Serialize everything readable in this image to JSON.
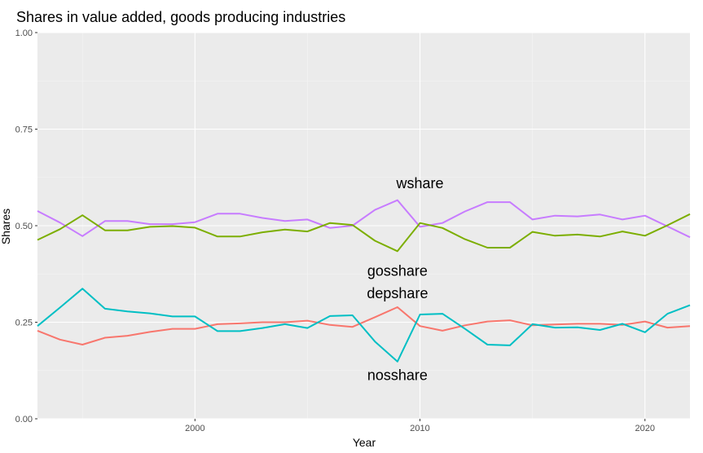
{
  "chart_data": {
    "type": "line",
    "title": "Shares in value added, goods producing industries",
    "xlabel": "Year",
    "ylabel": "Shares",
    "xlim": [
      1993,
      2022
    ],
    "ylim": [
      0,
      1
    ],
    "x_ticks": [
      2000,
      2010,
      2020
    ],
    "y_ticks": [
      "0.00",
      "0.25",
      "0.50",
      "0.75",
      "1.00"
    ],
    "y_tick_values": [
      0,
      0.25,
      0.5,
      0.75,
      1.0
    ],
    "grid": true,
    "legend": "none",
    "x": [
      1993,
      1994,
      1995,
      1996,
      1997,
      1998,
      1999,
      2000,
      2001,
      2002,
      2003,
      2004,
      2005,
      2006,
      2007,
      2008,
      2009,
      2010,
      2011,
      2012,
      2013,
      2014,
      2015,
      2016,
      2017,
      2018,
      2019,
      2020,
      2021,
      2022
    ],
    "series": [
      {
        "name": "wshare",
        "color": "#C77CFF",
        "label_at": [
          2010,
          0.61
        ],
        "values": [
          0.538,
          0.508,
          0.473,
          0.512,
          0.512,
          0.504,
          0.504,
          0.509,
          0.531,
          0.531,
          0.52,
          0.512,
          0.516,
          0.494,
          0.5,
          0.541,
          0.566,
          0.497,
          0.507,
          0.537,
          0.561,
          0.561,
          0.516,
          0.526,
          0.524,
          0.529,
          0.516,
          0.526,
          0.498,
          0.47
        ]
      },
      {
        "name": "gosshare",
        "color": "#7CAE00",
        "label_at": [
          2009,
          0.383
        ],
        "values": [
          0.463,
          0.491,
          0.527,
          0.488,
          0.488,
          0.497,
          0.499,
          0.495,
          0.472,
          0.472,
          0.483,
          0.49,
          0.485,
          0.507,
          0.502,
          0.461,
          0.434,
          0.507,
          0.494,
          0.465,
          0.443,
          0.443,
          0.484,
          0.474,
          0.477,
          0.472,
          0.485,
          0.474,
          0.501,
          0.53
        ]
      },
      {
        "name": "depshare",
        "color": "#F8766D",
        "label_at": [
          2009,
          0.325
        ],
        "values": [
          0.228,
          0.205,
          0.192,
          0.21,
          0.215,
          0.225,
          0.233,
          0.233,
          0.245,
          0.247,
          0.25,
          0.25,
          0.254,
          0.243,
          0.238,
          0.263,
          0.289,
          0.24,
          0.228,
          0.242,
          0.252,
          0.255,
          0.242,
          0.244,
          0.246,
          0.246,
          0.243,
          0.252,
          0.236,
          0.24
        ]
      },
      {
        "name": "nosshare",
        "color": "#00BFC4",
        "label_at": [
          2009,
          0.113
        ],
        "values": [
          0.24,
          0.288,
          0.337,
          0.285,
          0.278,
          0.273,
          0.265,
          0.265,
          0.227,
          0.227,
          0.235,
          0.245,
          0.235,
          0.266,
          0.268,
          0.2,
          0.148,
          0.27,
          0.272,
          0.233,
          0.192,
          0.19,
          0.245,
          0.236,
          0.237,
          0.23,
          0.246,
          0.224,
          0.272,
          0.294
        ]
      }
    ]
  }
}
